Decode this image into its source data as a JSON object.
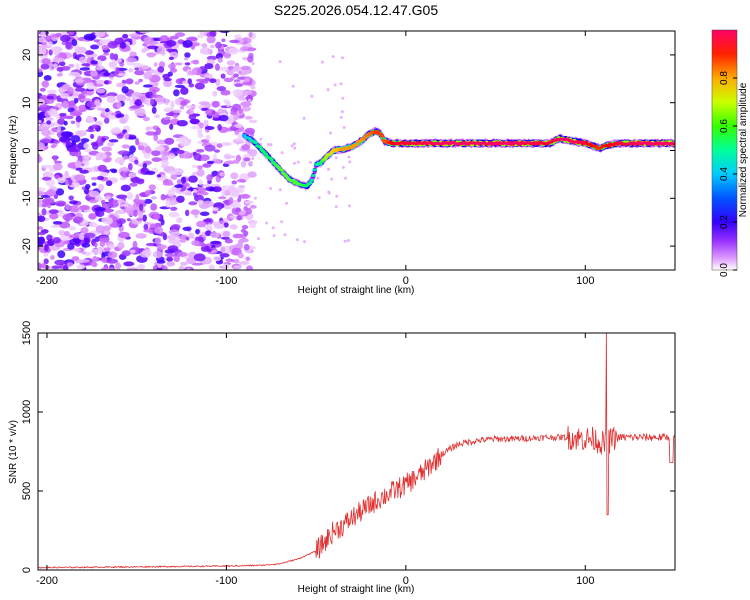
{
  "title": "S225.2026.054.12.47.G05",
  "colors": {
    "snr_line": "#e03030",
    "axis": "#000000",
    "colormap": [
      "#ffffff",
      "#cc66ff",
      "#6600ff",
      "#0000ff",
      "#00ccff",
      "#00ff66",
      "#99ff00",
      "#ffcc00",
      "#ff6600",
      "#ff0000",
      "#ff0066"
    ]
  },
  "chart_data": [
    {
      "type": "heatmap",
      "title": "S225.2026.054.12.47.G05",
      "xlabel": "Height of straight line (km)",
      "ylabel": "Frequency (Hz)",
      "xlim": [
        -205,
        150
      ],
      "ylim": [
        -25,
        25
      ],
      "xticks": [
        -200,
        -100,
        0,
        100
      ],
      "xtick_labels": [
        "-200",
        "-100",
        "0",
        "100"
      ],
      "yticks": [
        -20,
        -10,
        0,
        10,
        20
      ],
      "ytick_labels": [
        "-20",
        "-10",
        "0",
        "10",
        "20"
      ],
      "colorbar": {
        "label": "Normalized spectral amplitude",
        "range": [
          0,
          1
        ],
        "ticks": [
          0.0,
          0.2,
          0.4,
          0.6,
          0.8
        ],
        "tick_labels": [
          "0.0",
          "0.2",
          "0.4",
          "0.6",
          "0.8"
        ]
      },
      "ridge": {
        "x": [
          -90,
          -85,
          -80,
          -75,
          -70,
          -65,
          -60,
          -55,
          -52,
          -50,
          -47,
          -45,
          -40,
          -35,
          -30,
          -25,
          -20,
          -17,
          -14,
          -12,
          -8,
          -5,
          0,
          20,
          40,
          60,
          80,
          86,
          92,
          100,
          104,
          108,
          112,
          118,
          130,
          150
        ],
        "freq": [
          3,
          2,
          0,
          -2,
          -4,
          -6,
          -7,
          -7.5,
          -6,
          -3,
          -2.5,
          -1.5,
          0,
          0.3,
          0.8,
          2,
          3.5,
          4,
          3.5,
          2,
          1.5,
          1.5,
          1.5,
          1.5,
          1.5,
          1.5,
          1.5,
          2.5,
          2,
          1.5,
          1,
          0.5,
          1,
          1.5,
          1.5,
          1.5
        ],
        "amp": [
          0.4,
          0.45,
          0.5,
          0.5,
          0.55,
          0.55,
          0.55,
          0.5,
          0.45,
          0.45,
          0.5,
          0.6,
          0.7,
          0.75,
          0.75,
          0.75,
          0.8,
          0.85,
          0.85,
          0.8,
          0.9,
          0.95,
          0.95,
          1,
          1,
          1,
          0.95,
          1,
          1,
          0.95,
          0.9,
          0.85,
          0.9,
          0.95,
          1,
          1
        ]
      }
    },
    {
      "type": "line",
      "xlabel": "Height of straight line (km)",
      "ylabel": "SNR (10 * v/v)",
      "xlim": [
        -205,
        150
      ],
      "ylim": [
        0,
        1500
      ],
      "xticks": [
        -200,
        -100,
        0,
        100
      ],
      "xtick_labels": [
        "-200",
        "-100",
        "0",
        "100"
      ],
      "yticks": [
        0,
        500,
        1000,
        1500
      ],
      "ytick_labels": [
        "0",
        "500",
        "1000",
        "1500"
      ],
      "series": [
        {
          "name": "SNR",
          "x": [
            -205,
            -150,
            -100,
            -80,
            -70,
            -60,
            -50,
            -45,
            -40,
            -35,
            -30,
            -25,
            -20,
            -15,
            -10,
            -5,
            0,
            5,
            10,
            15,
            20,
            25,
            30,
            40,
            50,
            60,
            70,
            80,
            90,
            95,
            100,
            105,
            110,
            112,
            115,
            120,
            130,
            140,
            150
          ],
          "values": [
            15,
            20,
            25,
            30,
            40,
            70,
            120,
            180,
            250,
            280,
            330,
            370,
            410,
            450,
            480,
            510,
            540,
            580,
            620,
            680,
            730,
            770,
            800,
            820,
            830,
            830,
            835,
            840,
            840,
            835,
            830,
            830,
            800,
            800,
            830,
            840,
            840,
            840,
            840
          ]
        }
      ]
    }
  ]
}
